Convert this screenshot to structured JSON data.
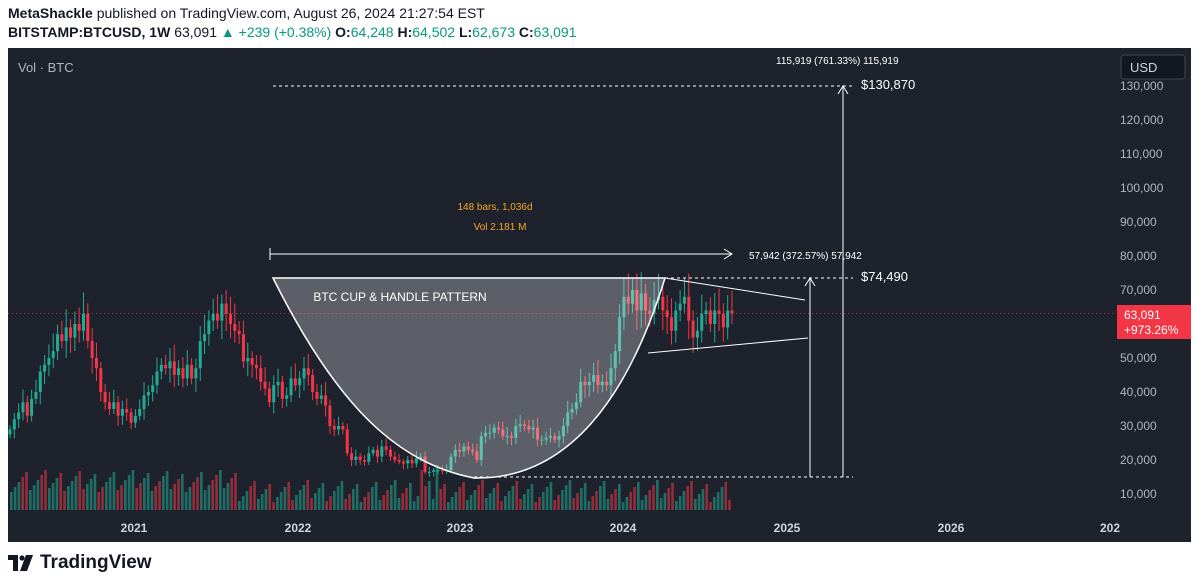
{
  "header": {
    "author": "MetaShackle",
    "published_text": "published on TradingView.com, August 26, 2024 21:27:54 EST",
    "symbol": "BITSTAMP:BTCUSD, 1W",
    "price": "63,091",
    "change": "+239 (+0.38%)",
    "open_label": "O:",
    "open": "64,248",
    "high_label": "H:",
    "high": "64,502",
    "low_label": "L:",
    "low": "62,673",
    "close_label": "C:",
    "close": "63,091"
  },
  "chart_data": {
    "type": "candlestick",
    "pane_label": "Vol · BTC",
    "currency_button": "USD",
    "x_ticks": [
      "2021",
      "2022",
      "2023",
      "2024",
      "2025",
      "2026",
      "202"
    ],
    "y_ticks": [
      "130,000",
      "120,000",
      "110,000",
      "100,000",
      "90,000",
      "80,000",
      "70,000",
      "60,000",
      "50,000",
      "40,000",
      "30,000",
      "20,000",
      "10,000"
    ],
    "ylim": [
      5000,
      145000
    ],
    "last_price_label": "63,091",
    "last_change_label": "+973.26%",
    "annotations": {
      "pattern_title": "BTC CUP & HANDLE PATTERN",
      "range_bars": "148 bars, 1,036d",
      "range_vol": "Vol 2.181 M",
      "measure_1": "57,942 (372.57%) 57,942",
      "measure_2": "115,919 (761.33%) 115,919",
      "target_1": "$74,490",
      "target_2": "$130,870"
    },
    "weekly_closes_approx": [
      29000,
      32000,
      34000,
      37000,
      33000,
      38000,
      40000,
      46000,
      48000,
      50000,
      52000,
      57000,
      55000,
      59000,
      56000,
      60000,
      58000,
      63000,
      55000,
      50000,
      47000,
      40000,
      37000,
      35000,
      37000,
      33000,
      35000,
      34000,
      31000,
      33000,
      35000,
      39000,
      40000,
      42000,
      46000,
      48000,
      47000,
      49000,
      45000,
      47000,
      44000,
      48000,
      44000,
      47000,
      55000,
      57000,
      61000,
      63000,
      61000,
      66000,
      63000,
      60000,
      58000,
      57000,
      49000,
      50000,
      48000,
      47000,
      43000,
      41000,
      37000,
      42000,
      43000,
      38000,
      39000,
      44000,
      42000,
      44000,
      47000,
      45000,
      40000,
      38000,
      39000,
      36000,
      30000,
      29000,
      30000,
      29000,
      22000,
      20000,
      21000,
      20000,
      19500,
      22000,
      23000,
      21000,
      24000,
      23000,
      21000,
      20000,
      19500,
      19000,
      20000,
      19000,
      20500,
      21000,
      16500,
      16500,
      17000,
      17000,
      16800,
      17000,
      21000,
      23000,
      22500,
      24000,
      23000,
      22500,
      20000,
      27000,
      28000,
      28000,
      29500,
      29000,
      27000,
      27000,
      26500,
      30000,
      30500,
      30000,
      29000,
      29500,
      26000,
      26000,
      26500,
      27000,
      26000,
      27000,
      30000,
      34000,
      35000,
      37000,
      43000,
      42000,
      43000,
      45000,
      42000,
      43000,
      42000,
      47000,
      52000,
      62000,
      68000,
      66000,
      70000,
      64000,
      69000,
      64000,
      63000,
      67000,
      68000,
      64000,
      62000,
      58000,
      64000,
      66000,
      68000,
      61000,
      56000,
      58000,
      63000,
      64000,
      60000,
      64000,
      63000,
      59000,
      64000,
      63091
    ],
    "volume_bars_approx_count": 190
  }
}
